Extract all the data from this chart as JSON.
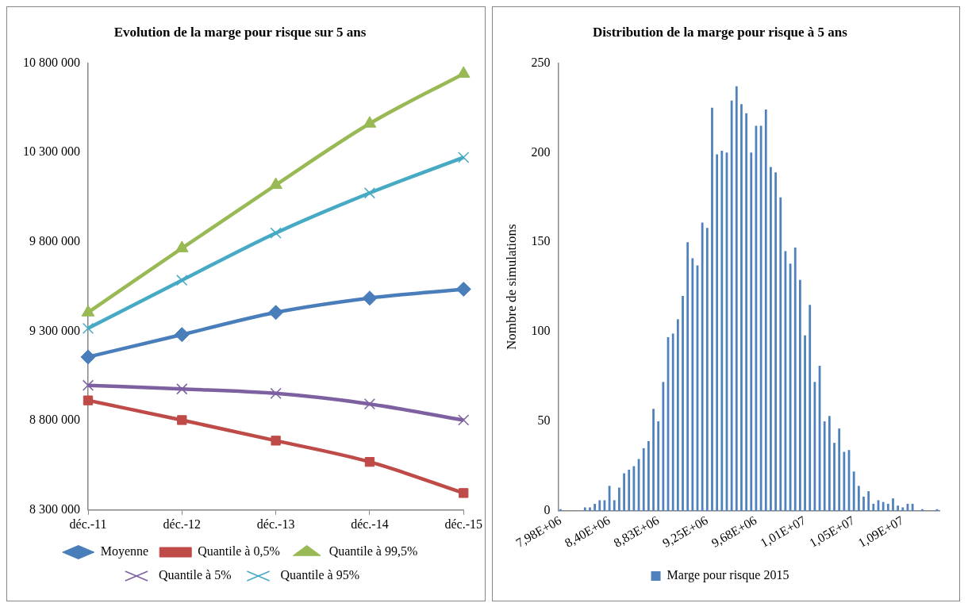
{
  "chart_data": [
    {
      "type": "line",
      "title": "Evolution de la marge pour risque sur 5 ans",
      "categories": [
        "déc.-11",
        "déc.-12",
        "déc.-13",
        "déc.-14",
        "déc.-15"
      ],
      "series": [
        {
          "name": "Moyenne",
          "color": "#4a7ebb",
          "marker": "diamond",
          "values": [
            9156000,
            9281000,
            9405000,
            9485000,
            9535000
          ]
        },
        {
          "name": "Quantile à 0,5%",
          "color": "#be4b48",
          "marker": "square",
          "values": [
            8913000,
            8803000,
            8688000,
            8569000,
            8395000
          ]
        },
        {
          "name": "Quantile à 99,5%",
          "color": "#98b954",
          "marker": "triangle",
          "values": [
            9405000,
            9764000,
            10118000,
            10461000,
            10740000
          ]
        },
        {
          "name": "Quantile à 5%",
          "color": "#7d60a0",
          "marker": "cross",
          "values": [
            8997000,
            8977000,
            8952000,
            8893000,
            8803000
          ]
        },
        {
          "name": "Quantile à 95%",
          "color": "#46aac5",
          "marker": "cross",
          "values": [
            9316000,
            9585000,
            9849000,
            10073000,
            10272000
          ]
        }
      ],
      "ylim": [
        8300000,
        10800000
      ],
      "yticks": [
        {
          "value": 8300000,
          "label": "8 300 000"
        },
        {
          "value": 8800000,
          "label": "8 800 000"
        },
        {
          "value": 9300000,
          "label": "9 300 000"
        },
        {
          "value": 9800000,
          "label": "9 800 000"
        },
        {
          "value": 10300000,
          "label": "10 300 000"
        },
        {
          "value": 10800000,
          "label": "10 800 000"
        }
      ],
      "legend": "bottom"
    },
    {
      "type": "bar",
      "title": "Distribution de la marge pour risque à 5 ans",
      "ylabel": "Nombre de simulations",
      "categories": [
        "7,98E+06",
        null,
        null,
        null,
        null,
        null,
        null,
        null,
        null,
        null,
        "8,40E+06",
        null,
        null,
        null,
        null,
        null,
        null,
        null,
        null,
        null,
        "8,83E+06",
        null,
        null,
        null,
        null,
        null,
        null,
        null,
        null,
        null,
        "9,25E+06",
        null,
        null,
        null,
        null,
        null,
        null,
        null,
        null,
        null,
        "9,68E+06",
        null,
        null,
        null,
        null,
        null,
        null,
        null,
        null,
        null,
        "1,01E+07",
        null,
        null,
        null,
        null,
        null,
        null,
        null,
        null,
        null,
        "1,05E+07",
        null,
        null,
        null,
        null,
        null,
        null,
        null,
        null,
        null,
        "1,09E+07",
        null,
        null,
        null,
        null,
        null,
        null,
        null
      ],
      "series": [
        {
          "name": "Marge pour risque 2015",
          "color": "#4f81bd",
          "values": [
            1,
            0,
            0,
            0,
            0,
            2,
            2,
            4,
            6,
            6,
            14,
            6,
            13,
            21,
            23,
            25,
            29,
            35,
            39,
            57,
            50,
            72,
            97,
            99,
            107,
            120,
            150,
            141,
            137,
            161,
            158,
            225,
            199,
            201,
            200,
            229,
            237,
            227,
            222,
            200,
            215,
            215,
            224,
            192,
            189,
            175,
            145,
            138,
            147,
            129,
            98,
            115,
            72,
            81,
            50,
            53,
            38,
            46,
            33,
            34,
            22,
            14,
            8,
            11,
            4,
            6,
            5,
            4,
            7,
            3,
            2,
            4,
            4,
            0,
            1,
            0,
            0,
            1
          ]
        }
      ],
      "ylim": [
        0,
        250
      ],
      "yticks": [
        0,
        50,
        100,
        150,
        200,
        250
      ],
      "legend": "bottom"
    }
  ]
}
